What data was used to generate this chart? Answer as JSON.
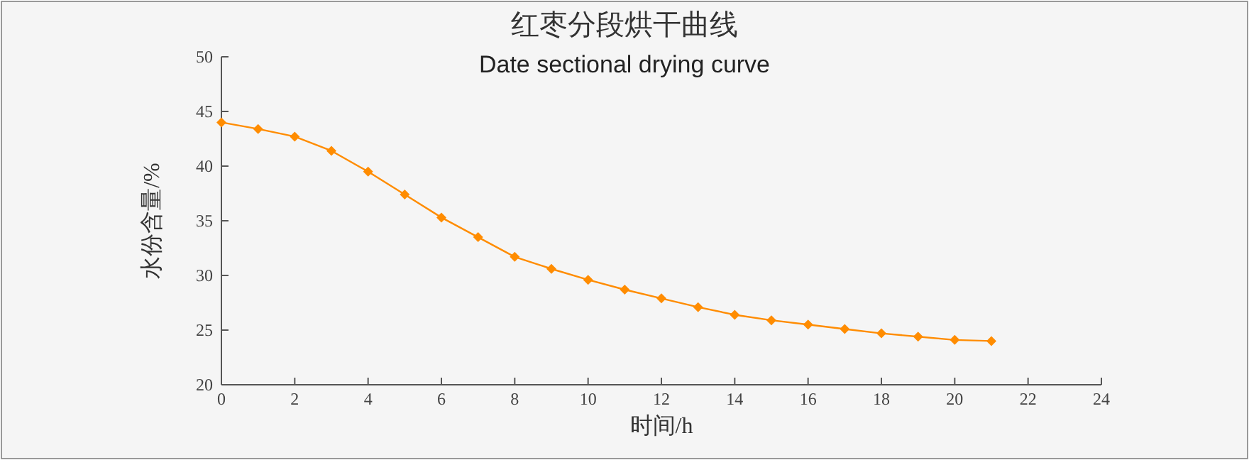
{
  "chart_data": {
    "type": "line",
    "title": "红枣分段烘干曲线",
    "subtitle": "Date sectional drying curve",
    "xlabel": "时间/h",
    "ylabel": "水份含量/%",
    "x": [
      0,
      1,
      2,
      3,
      4,
      5,
      6,
      7,
      8,
      9,
      10,
      11,
      12,
      13,
      14,
      15,
      16,
      17,
      18,
      19,
      20,
      21
    ],
    "series": [
      {
        "color": "#ff8c00",
        "values": [
          44.0,
          43.4,
          42.7,
          41.4,
          39.5,
          37.4,
          35.3,
          33.5,
          31.7,
          30.6,
          29.6,
          28.7,
          27.9,
          27.1,
          26.4,
          25.9,
          25.5,
          25.1,
          24.7,
          24.4,
          24.1,
          24.0
        ]
      }
    ],
    "xlim": [
      0,
      24
    ],
    "xticks": [
      0,
      2,
      4,
      6,
      8,
      10,
      12,
      14,
      16,
      18,
      20,
      22,
      24
    ],
    "ylim": [
      20,
      50
    ],
    "yticks": [
      20,
      25,
      30,
      35,
      40,
      45,
      50
    ],
    "grid": false,
    "marker": "diamond",
    "line_style": "solid"
  }
}
